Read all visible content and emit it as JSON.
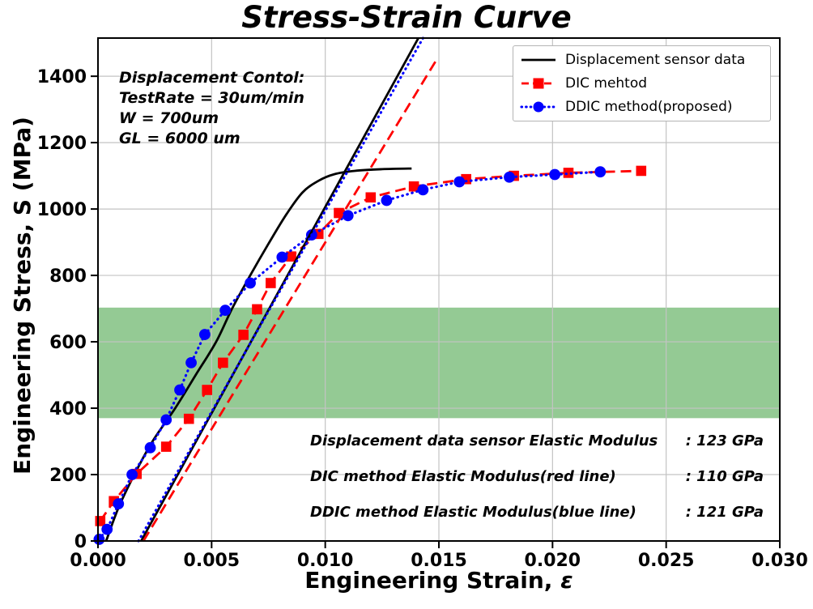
{
  "title": "Stress-Strain Curve",
  "axis_labels": {
    "x_prefix": "Engineering Strain,",
    "x_symbol": "ε",
    "y": "Engineering Stress, S (MPa)"
  },
  "chart_data": {
    "type": "line",
    "title": "Stress-Strain Curve",
    "xlabel": "Engineering Strain, ε",
    "ylabel": "Engineering Stress, S (MPa)",
    "xlim": [
      0.0,
      0.03
    ],
    "ylim": [
      0,
      1515
    ],
    "xticks": [
      0.0,
      0.005,
      0.01,
      0.015,
      0.02,
      0.025,
      0.03
    ],
    "xtick_labels": [
      "0.000",
      "0.005",
      "0.010",
      "0.015",
      "0.020",
      "0.025",
      "0.030"
    ],
    "yticks": [
      0,
      200,
      400,
      600,
      800,
      1000,
      1200,
      1400
    ],
    "ytick_labels": [
      "0",
      "200",
      "400",
      "600",
      "800",
      "1000",
      "1200",
      "1400"
    ],
    "grid": true,
    "grid_color": "#c3c3c3",
    "highlight_band": {
      "ymin": 370,
      "ymax": 703,
      "color": "#008000",
      "opacity": 0.42
    },
    "legend": {
      "position": "upper right",
      "items": [
        "Displacement sensor data",
        "DIC mehtod",
        "DDIC method(proposed)"
      ]
    },
    "series": [
      {
        "name": "Displacement sensor data",
        "color": "#000000",
        "line_style": "solid",
        "marker": "none",
        "smooth": true,
        "in_legend": true,
        "x": [
          0.00036,
          0.0009,
          0.0016,
          0.0024,
          0.0034,
          0.0043,
          0.0052,
          0.0059,
          0.0067,
          0.0075,
          0.0083,
          0.009,
          0.0097,
          0.0104,
          0.0113,
          0.0125,
          0.0138
        ],
        "y": [
          0,
          100,
          200,
          300,
          400,
          500,
          600,
          700,
          800,
          895,
          985,
          1050,
          1085,
          1105,
          1115,
          1120,
          1122
        ]
      },
      {
        "name": "DIC mehtod",
        "color": "#ff0000",
        "line_style": "dashed",
        "marker": "square",
        "smooth": false,
        "in_legend": true,
        "x": [
          0.0001,
          0.0007,
          0.0017,
          0.003,
          0.004,
          0.0048,
          0.0055,
          0.0064,
          0.007,
          0.0076,
          0.0085,
          0.0097,
          0.0106,
          0.012,
          0.0139,
          0.0162,
          0.0183,
          0.0207,
          0.0239
        ],
        "y": [
          60,
          120,
          202,
          284,
          368,
          455,
          537,
          621,
          698,
          777,
          857,
          925,
          988,
          1035,
          1068,
          1090,
          1100,
          1109,
          1115
        ]
      },
      {
        "name": "DDIC method(proposed)",
        "color": "#0000ff",
        "line_style": "dotted",
        "marker": "circle",
        "smooth": false,
        "in_legend": true,
        "x": [
          5e-05,
          0.0004,
          0.0009,
          0.0015,
          0.0023,
          0.003,
          0.0036,
          0.0041,
          0.0047,
          0.0056,
          0.0067,
          0.0081,
          0.0094,
          0.011,
          0.0127,
          0.0143,
          0.0159,
          0.0181,
          0.0201,
          0.0221
        ],
        "y": [
          5,
          35,
          112,
          200,
          281,
          365,
          455,
          537,
          622,
          695,
          777,
          855,
          922,
          980,
          1026,
          1058,
          1082,
          1096,
          1104,
          1112
        ]
      },
      {
        "name": "Elastic fit 123 GPa (displacement sensor, black line)",
        "color": "#000000",
        "line_style": "solid",
        "marker": "none",
        "smooth": false,
        "in_legend": false,
        "x": [
          0.0019,
          0.0141
        ],
        "y": [
          0,
          1515
        ]
      },
      {
        "name": "Elastic fit 121 GPa (DDIC method, blue line)",
        "color": "#0000ff",
        "line_style": "dotted",
        "marker": "none",
        "smooth": false,
        "in_legend": false,
        "x": [
          0.00178,
          0.0143
        ],
        "y": [
          0,
          1515
        ]
      },
      {
        "name": "Elastic fit 110 GPa (DIC method, red line)",
        "color": "#ff0000",
        "line_style": "dashed",
        "marker": "none",
        "smooth": false,
        "in_legend": false,
        "x": [
          0.002,
          0.0149
        ],
        "y": [
          0,
          1450
        ]
      }
    ]
  },
  "annotations": {
    "test_conditions": {
      "lines": [
        "Displacement Contol:",
        "TestRate = 30um/min",
        "W = 700um",
        "GL = 6000 um"
      ]
    },
    "modulus_results": [
      {
        "label": "Displacement data sensor Elastic Modulus",
        "value": ": 123 GPa"
      },
      {
        "label": "DIC method Elastic Modulus(red line)",
        "value": ": 110 GPa"
      },
      {
        "label": "DDIC method Elastic Modulus(blue line)",
        "value": ": 121 GPa"
      }
    ]
  }
}
